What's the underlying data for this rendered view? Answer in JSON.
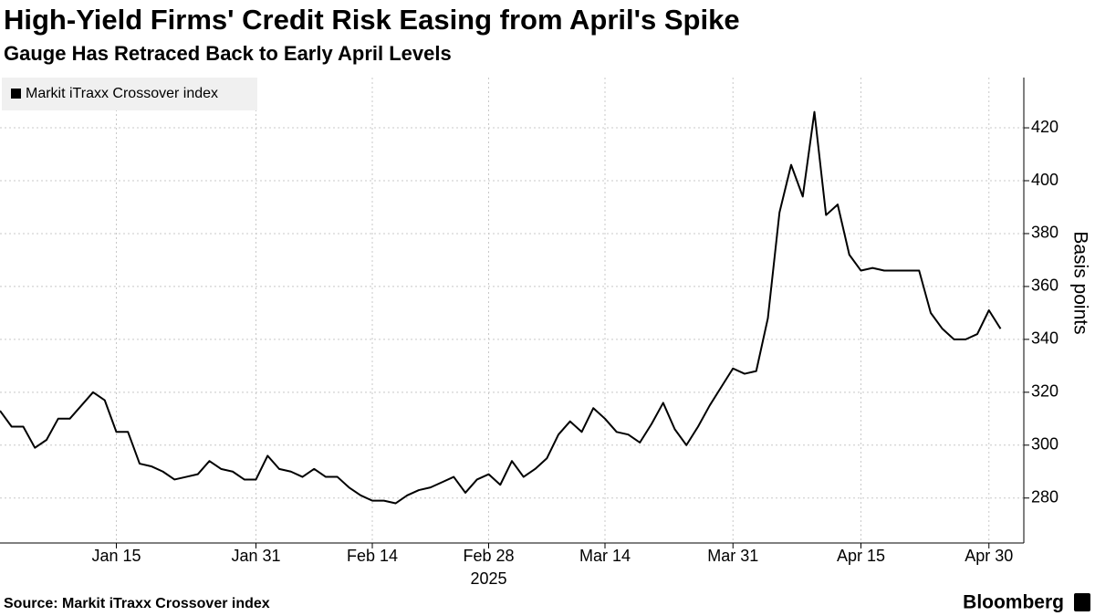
{
  "chart_data": {
    "type": "line",
    "title": "High-Yield Firms' Credit Risk Easing from April's Spike",
    "subtitle": "Gauge Has Retraced Back to Early April Levels",
    "y_label": "Basis points",
    "x_sublabel": "2025",
    "source": "Source: Markit iTraxx Crossover index",
    "brand": "Bloomberg",
    "categories": [
      null,
      null,
      null,
      null,
      null,
      null,
      null,
      null,
      null,
      null,
      "Jan 15",
      null,
      null,
      null,
      null,
      null,
      null,
      null,
      null,
      null,
      null,
      null,
      "Jan 31",
      null,
      null,
      null,
      null,
      null,
      null,
      null,
      null,
      null,
      "Feb 14",
      null,
      null,
      null,
      null,
      null,
      null,
      null,
      null,
      null,
      "Feb 28",
      null,
      null,
      null,
      null,
      null,
      null,
      null,
      null,
      null,
      "Mar 14",
      null,
      null,
      null,
      null,
      null,
      null,
      null,
      null,
      null,
      null,
      "Mar 31",
      null,
      null,
      null,
      null,
      null,
      null,
      null,
      null,
      null,
      null,
      "Apr 15",
      null,
      null,
      null,
      null,
      null,
      null,
      null,
      null,
      null,
      null,
      "Apr 30",
      null
    ],
    "series": [
      {
        "name": "Markit iTraxx Crossover index",
        "color": "#000000",
        "values": [
          313,
          307,
          307,
          299,
          302,
          310,
          310,
          315,
          320,
          317,
          305,
          305,
          293,
          292,
          290,
          287,
          288,
          289,
          294,
          291,
          290,
          287,
          287,
          296,
          291,
          290,
          288,
          291,
          288,
          288,
          284,
          281,
          279,
          279,
          278,
          281,
          283,
          284,
          286,
          288,
          282,
          287,
          289,
          285,
          294,
          288,
          291,
          295,
          304,
          309,
          305,
          314,
          310,
          305,
          304,
          301,
          308,
          316,
          306,
          300,
          307,
          315,
          322,
          329,
          327,
          328,
          348,
          388,
          406,
          394,
          426,
          387,
          391,
          372,
          366,
          367,
          366,
          366,
          366,
          366,
          350,
          344,
          340,
          340,
          342,
          351,
          344
        ]
      }
    ],
    "ylim": [
      263,
      439
    ],
    "yticks": [
      280,
      300,
      320,
      340,
      360,
      380,
      400,
      420
    ],
    "grid": true,
    "legend": "top-left"
  }
}
